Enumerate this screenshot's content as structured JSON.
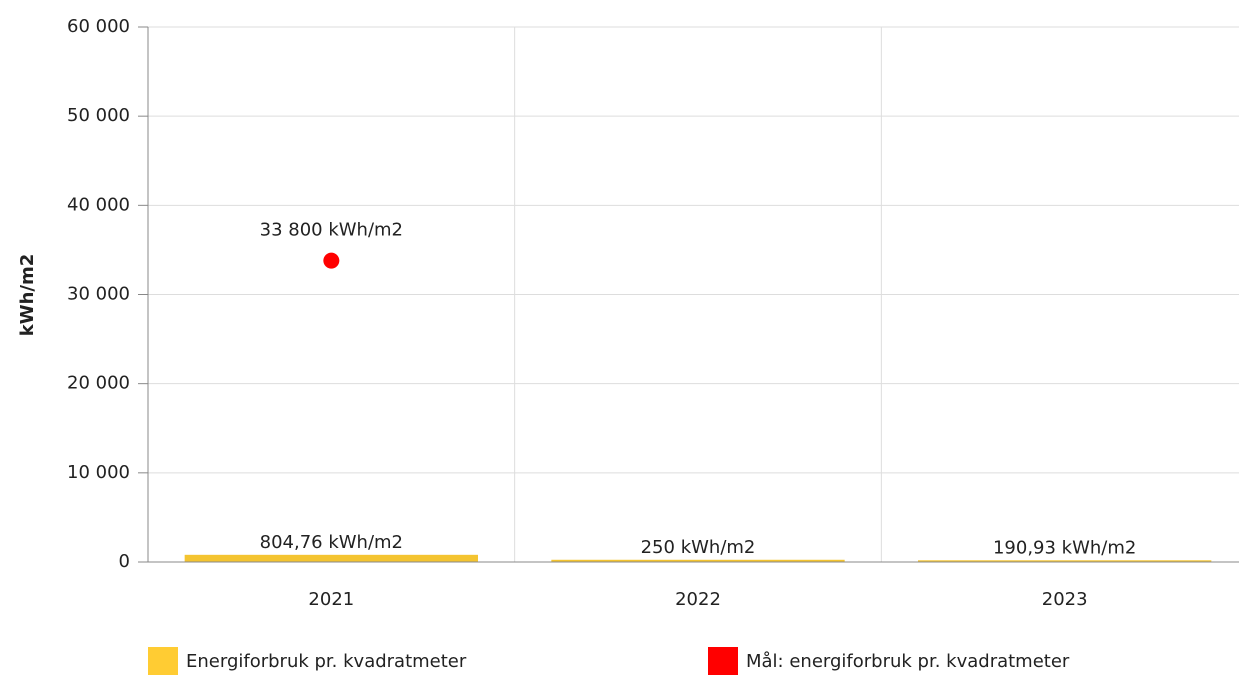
{
  "chart_data": {
    "type": "bar",
    "ylabel": "kWh/m2",
    "categories": [
      "2021",
      "2022",
      "2023"
    ],
    "series": [
      {
        "name": "Energiforbruk pr. kvadratmeter",
        "type": "bar",
        "color": "#f4c430",
        "legend_color": "#ffcc33",
        "values": [
          804.76,
          250,
          190.93
        ],
        "value_labels": [
          "804,76 kWh/m2",
          "250 kWh/m2",
          "190,93 kWh/m2"
        ]
      },
      {
        "name": "Mål: energiforbruk pr. kvadratmeter",
        "type": "scatter",
        "color": "#ff0000",
        "values": [
          33800,
          null,
          null
        ],
        "value_labels": [
          "33 800 kWh/m2",
          null,
          null
        ]
      }
    ],
    "ylim": [
      0,
      60000
    ],
    "yticks": [
      {
        "value": 0,
        "label": "0"
      },
      {
        "value": 10000,
        "label": "10 000"
      },
      {
        "value": 20000,
        "label": "20 000"
      },
      {
        "value": 30000,
        "label": "30 000"
      },
      {
        "value": 40000,
        "label": "40 000"
      },
      {
        "value": 50000,
        "label": "50 000"
      },
      {
        "value": 60000,
        "label": "60 000"
      }
    ],
    "grid": true
  }
}
